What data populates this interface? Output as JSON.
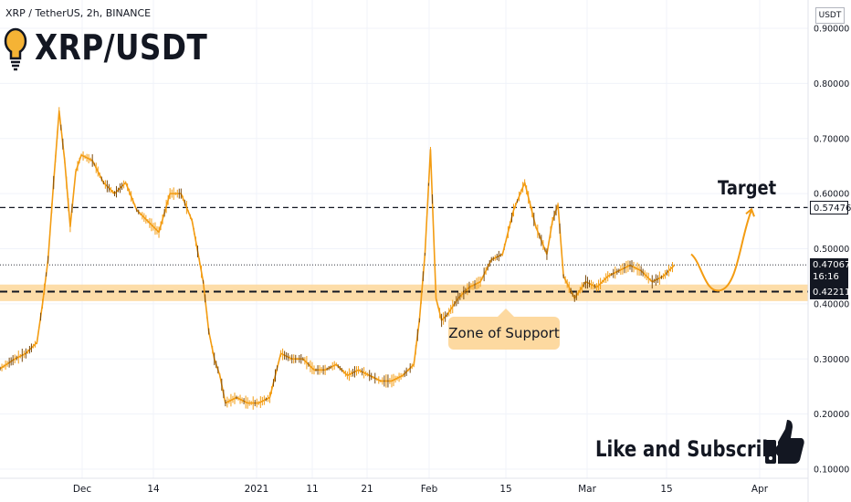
{
  "header": {
    "symbol_line": "XRP / TetherUS, 2h, BINANCE",
    "big_title": "XRP/USDT",
    "unit": "USDT"
  },
  "annotations": {
    "target": "Target",
    "zone": "Zone of Support",
    "cta": "Like and Subscribe"
  },
  "price_tags": {
    "target": "0.57476",
    "last": "0.47067",
    "countdown": "16:16",
    "support": "0.42211"
  },
  "icons": [
    "lightbulb-icon",
    "thumbs-up-icon"
  ],
  "colors": {
    "price_line": "#f39c12",
    "zone_band": "#fdd9a0",
    "dashed_level": "#131722",
    "grid": "#f0f3fa"
  },
  "chart_data": {
    "type": "line",
    "title": "XRP/USDT",
    "xlabel": "",
    "ylabel": "",
    "x_ticks": [
      "Dec",
      "14",
      "2021",
      "11",
      "21",
      "Feb",
      "15",
      "Mar",
      "15",
      "Apr"
    ],
    "y_ticks": [
      "0.10000",
      "0.20000",
      "0.30000",
      "0.40000",
      "0.50000",
      "0.60000",
      "0.70000",
      "0.80000",
      "0.90000"
    ],
    "ylim": [
      0.08,
      0.92
    ],
    "grid": true,
    "levels": {
      "target": 0.57476,
      "support": 0.42211,
      "last": 0.47067,
      "support_zone": [
        0.405,
        0.435
      ]
    },
    "series": [
      {
        "x": [
          "Nov 14",
          "Nov 17",
          "Nov 19",
          "Nov 21",
          "Nov 22",
          "Nov 23",
          "Nov 24",
          "Nov 25",
          "Nov 26",
          "Nov 27",
          "Nov 28",
          "Nov 29",
          "Dec 1",
          "Dec 3",
          "Dec 5",
          "Dec 7",
          "Dec 9",
          "Dec 11",
          "Dec 13",
          "Dec 15",
          "Dec 17",
          "Dec 19",
          "Dec 21",
          "Dec 22",
          "Dec 23",
          "Dec 24",
          "Dec 25",
          "Dec 27",
          "Dec 29",
          "Dec 31",
          "Jan 2",
          "Jan 4",
          "Jan 6",
          "Jan 8",
          "Jan 10",
          "Jan 12",
          "Jan 14",
          "Jan 16",
          "Jan 18",
          "Jan 20",
          "Jan 22",
          "Jan 24",
          "Jan 26",
          "Jan 28",
          "Jan 29",
          "Jan 30",
          "Jan 31",
          "Feb 1",
          "Feb 2",
          "Feb 3",
          "Feb 5",
          "Feb 7",
          "Feb 9",
          "Feb 11",
          "Feb 13",
          "Feb 15",
          "Feb 17",
          "Feb 19",
          "Feb 21",
          "Feb 22",
          "Feb 23",
          "Feb 24",
          "Feb 26",
          "Feb 28",
          "Mar 2",
          "Mar 4",
          "Mar 6",
          "Mar 8",
          "Mar 10",
          "Mar 12",
          "Mar 14",
          "Mar 16"
        ],
        "y": [
          0.28,
          0.3,
          0.31,
          0.33,
          0.4,
          0.48,
          0.62,
          0.75,
          0.66,
          0.54,
          0.64,
          0.67,
          0.66,
          0.62,
          0.6,
          0.62,
          0.57,
          0.55,
          0.53,
          0.6,
          0.6,
          0.55,
          0.44,
          0.35,
          0.3,
          0.27,
          0.22,
          0.23,
          0.22,
          0.22,
          0.23,
          0.31,
          0.3,
          0.3,
          0.28,
          0.28,
          0.29,
          0.27,
          0.28,
          0.27,
          0.26,
          0.26,
          0.27,
          0.29,
          0.37,
          0.49,
          0.68,
          0.41,
          0.37,
          0.38,
          0.41,
          0.43,
          0.44,
          0.48,
          0.49,
          0.57,
          0.62,
          0.54,
          0.49,
          0.55,
          0.58,
          0.45,
          0.41,
          0.44,
          0.43,
          0.45,
          0.46,
          0.47,
          0.46,
          0.44,
          0.45,
          0.47
        ]
      }
    ]
  }
}
